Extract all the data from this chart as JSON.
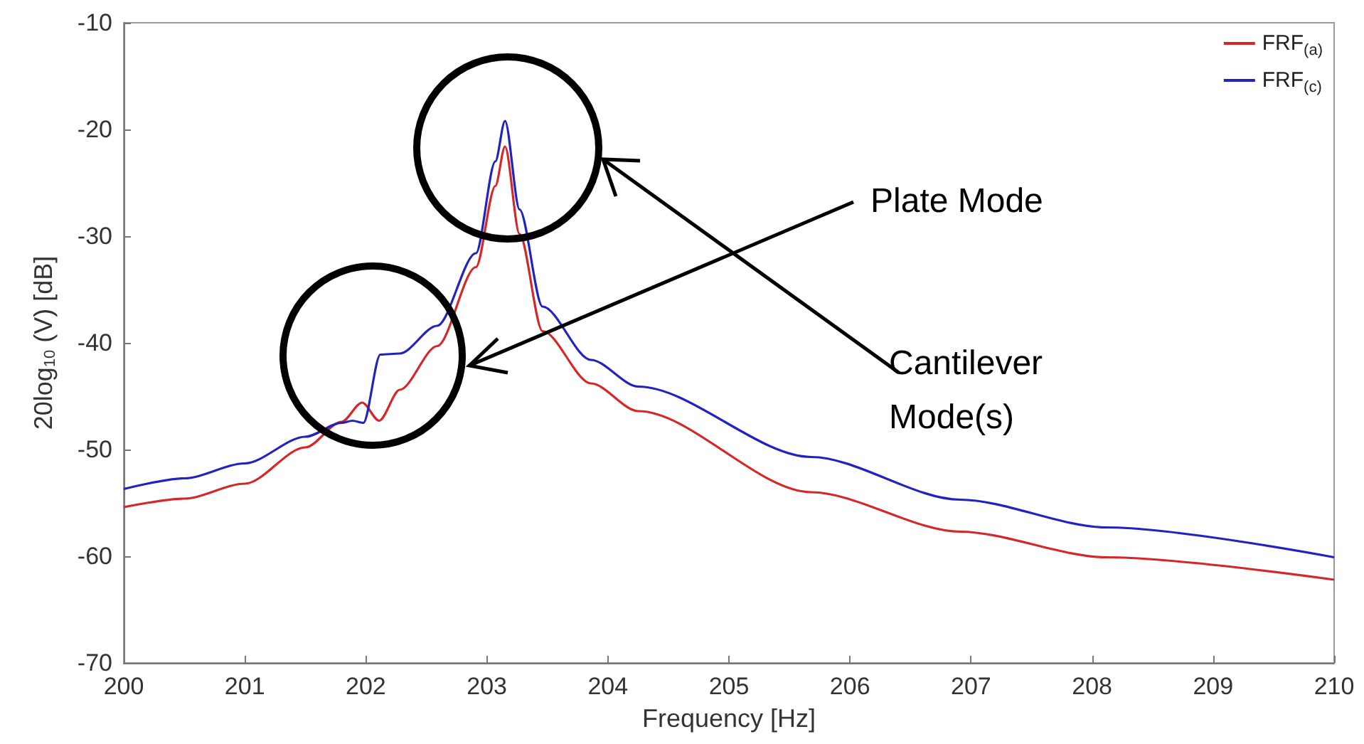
{
  "chart_data": {
    "type": "line",
    "xlabel": "Frequency [Hz]",
    "ylabel": "20log$_{10}$ (V) [dB]",
    "xlim": [
      200,
      210
    ],
    "xticks": [
      200,
      201,
      202,
      203,
      204,
      205,
      206,
      207,
      208,
      209,
      210
    ],
    "ylim": [
      -70,
      -10
    ],
    "yticks": [
      -70,
      -60,
      -50,
      -40,
      -30,
      -20,
      -10
    ],
    "grid": false,
    "legend": "top right",
    "marker": "none",
    "line_style": "solid",
    "annotations": [
      "Plate Mode",
      "Cantilever Mode(s)"
    ],
    "series": [
      {
        "name": "FRF$_{(a)}$",
        "color": "#d62728",
        "x": [
          200,
          200.5,
          201,
          201.5,
          201.8,
          201.97,
          202.11,
          202.28,
          202.59,
          202.91,
          203.07,
          203.15,
          203.27,
          203.46,
          203.86,
          204.25,
          205.68,
          206.91,
          208.12,
          210
        ],
        "values": [
          -55.4,
          -54.6,
          -53.2,
          -49.8,
          -47.4,
          -45.6,
          -47.3,
          -44.4,
          -40.3,
          -32.9,
          -25.3,
          -21.6,
          -29.8,
          -38.9,
          -43.8,
          -46.4,
          -54.0,
          -57.7,
          -60.1,
          -62.2
        ]
      },
      {
        "name": "FRF$_{(c)}$",
        "color": "#2222c0",
        "x": [
          200,
          200.5,
          201,
          201.5,
          201.8,
          201.89,
          201.98,
          202.12,
          202.28,
          202.59,
          202.91,
          203.07,
          203.15,
          203.27,
          203.46,
          203.86,
          204.25,
          205.68,
          206.91,
          208.12,
          210
        ],
        "values": [
          -53.7,
          -52.7,
          -51.3,
          -48.8,
          -47.5,
          -47.3,
          -47.5,
          -41.1,
          -41.0,
          -38.4,
          -31.6,
          -23.0,
          -19.2,
          -27.5,
          -36.6,
          -41.6,
          -44.1,
          -50.7,
          -54.7,
          -57.3,
          -60.1
        ]
      }
    ]
  }
}
